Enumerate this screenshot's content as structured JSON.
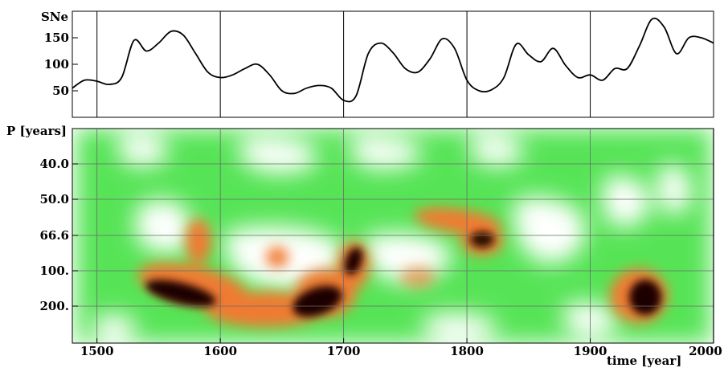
{
  "chart_data": [
    {
      "type": "line",
      "ylabel": "SNe",
      "x": [
        1480,
        1490,
        1500,
        1510,
        1520,
        1530,
        1540,
        1550,
        1560,
        1570,
        1580,
        1590,
        1600,
        1610,
        1620,
        1630,
        1640,
        1650,
        1660,
        1670,
        1680,
        1690,
        1700,
        1710,
        1720,
        1730,
        1740,
        1750,
        1760,
        1770,
        1780,
        1790,
        1800,
        1810,
        1820,
        1830,
        1840,
        1850,
        1860,
        1870,
        1880,
        1890,
        1900,
        1910,
        1920,
        1930,
        1940,
        1950,
        1960,
        1970,
        1980,
        1990,
        2000
      ],
      "series": [
        {
          "values": [
            55,
            70,
            68,
            62,
            75,
            145,
            125,
            140,
            162,
            155,
            120,
            85,
            75,
            80,
            92,
            100,
            80,
            50,
            45,
            55,
            60,
            55,
            32,
            40,
            120,
            140,
            122,
            92,
            85,
            110,
            148,
            130,
            70,
            50,
            52,
            75,
            138,
            118,
            105,
            130,
            98,
            75,
            80,
            70,
            92,
            92,
            135,
            185,
            170,
            120,
            150,
            150,
            140
          ]
        }
      ],
      "xlim": [
        1480,
        2000
      ],
      "ylim": [
        0,
        200
      ],
      "yticks": [
        50,
        100,
        150
      ],
      "xgrid": [
        1500,
        1600,
        1700,
        1800,
        1900,
        2000
      ]
    },
    {
      "type": "heatmap",
      "xlabel": "time [year]",
      "ylabel": "P [years]",
      "xticks": [
        1500,
        1600,
        1700,
        1800,
        1900,
        2000
      ],
      "yticks": [
        "40.0",
        "50.0",
        "66.6",
        "100.",
        "200."
      ],
      "xlim": [
        1480,
        2000
      ],
      "colors": {
        "low": "#ffffff",
        "mid": "#3dd43d",
        "high": "#f07830",
        "peak": "#100000"
      }
    }
  ]
}
